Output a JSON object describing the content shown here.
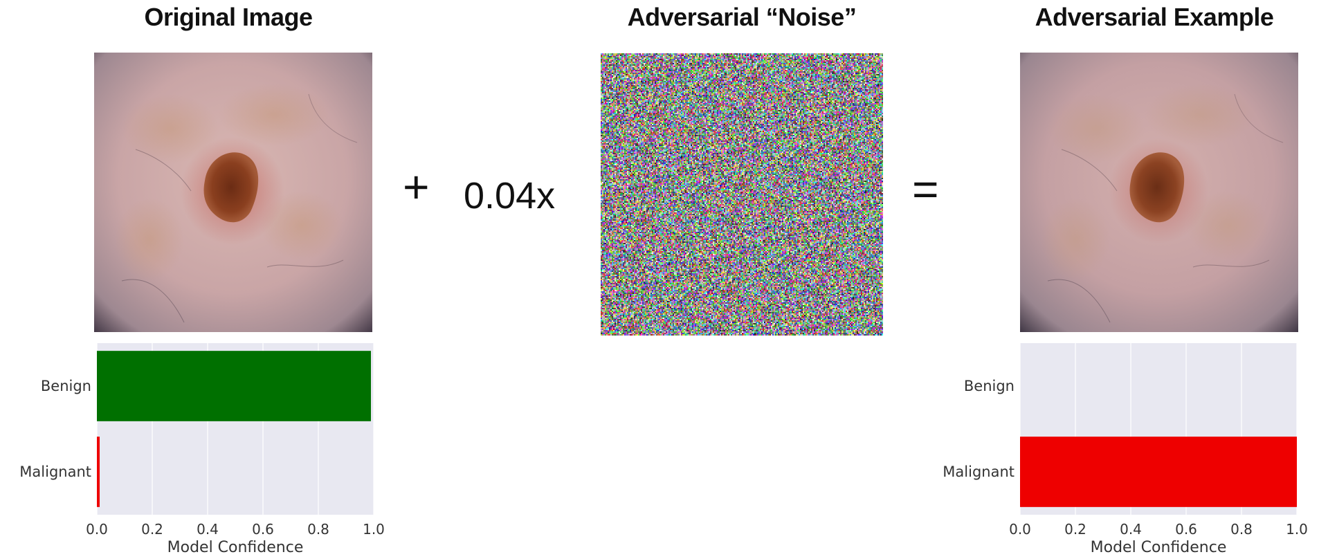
{
  "panels": {
    "original_title": "Original Image",
    "noise_title": "Adversarial “Noise”",
    "adversarial_title": "Adversarial Example"
  },
  "operators": {
    "plus": "+",
    "scale": "0.04x",
    "equals": "="
  },
  "colors": {
    "benign": "#007000",
    "malignant": "#ee0000",
    "plot_bg": "#e8e8f1",
    "grid": "#ffffff"
  },
  "chart_data": [
    {
      "type": "bar",
      "orientation": "horizontal",
      "categories": [
        "Benign",
        "Malignant"
      ],
      "values": [
        0.99,
        0.01
      ],
      "xlabel": "Model Confidence",
      "xlim": [
        0.0,
        1.0
      ],
      "xticks": [
        "0.0",
        "0.2",
        "0.4",
        "0.6",
        "0.8",
        "1.0"
      ],
      "grid": true
    },
    {
      "type": "bar",
      "orientation": "horizontal",
      "categories": [
        "Benign",
        "Malignant"
      ],
      "values": [
        0.0,
        1.0
      ],
      "xlabel": "Model Confidence",
      "xlim": [
        0.0,
        1.0
      ],
      "xticks": [
        "0.0",
        "0.2",
        "0.4",
        "0.6",
        "0.8",
        "1.0"
      ],
      "grid": true
    }
  ]
}
